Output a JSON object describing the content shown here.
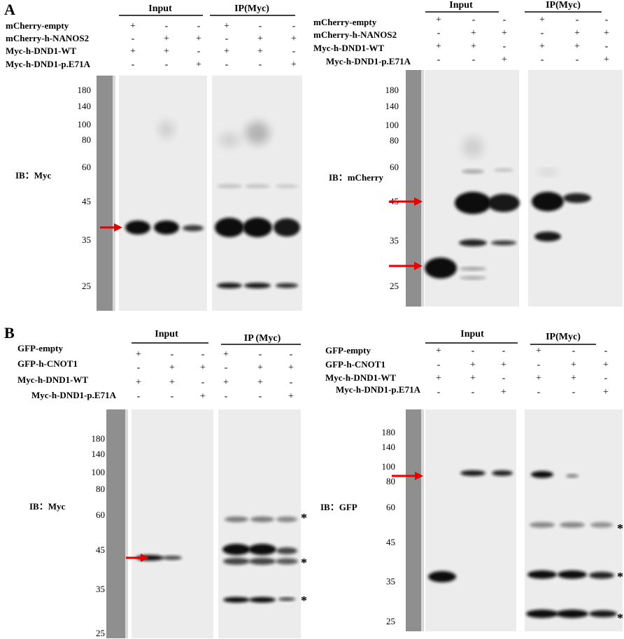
{
  "panel_labels": [
    "A",
    "B"
  ],
  "panels": [
    {
      "groups": [
        "Input",
        "IP(Myc)"
      ],
      "rows": [
        {
          "label": "mCherry-empty",
          "signs": [
            "+",
            "-",
            "-",
            "+",
            "-",
            "-"
          ]
        },
        {
          "label": "mCherry-h-NANOS2",
          "signs": [
            "-",
            "+",
            "+",
            "-",
            "+",
            "+"
          ]
        },
        {
          "label": "Myc-h-DND1-WT",
          "signs": [
            "+",
            "+",
            "-",
            "+",
            "+",
            "-"
          ]
        },
        {
          "label": "Myc-h-DND1-p.E71A",
          "signs": [
            "-",
            "-",
            "+",
            "-",
            "-",
            "+"
          ]
        }
      ],
      "markers": [
        180,
        140,
        100,
        80,
        60,
        45,
        35,
        25
      ],
      "ib": "IB：Myc",
      "asterisks": []
    },
    {
      "groups": [
        "Input",
        "IP(Myc)"
      ],
      "rows": [
        {
          "label": "mCherry-empty",
          "signs": [
            "+",
            "-",
            "-",
            "+",
            "-",
            "-"
          ]
        },
        {
          "label": "mCherry-h-NANOS2",
          "signs": [
            "-",
            "+",
            "+",
            "-",
            "+",
            "+"
          ]
        },
        {
          "label": "Myc-h-DND1-WT",
          "signs": [
            "+",
            "+",
            "-",
            "+",
            "+",
            "-"
          ]
        },
        {
          "label": "Myc-h-DND1-p.E71A",
          "signs": [
            "-",
            "-",
            "+",
            "-",
            "-",
            "+"
          ]
        }
      ],
      "markers": [
        180,
        140,
        100,
        80,
        60,
        45,
        35,
        25
      ],
      "ib": "IB：mCherry",
      "asterisks": []
    },
    {
      "groups": [
        "Input",
        "IP (Myc)"
      ],
      "rows": [
        {
          "label": "GFP-empty",
          "signs": [
            "+",
            "-",
            "-",
            "+",
            "-",
            "-"
          ]
        },
        {
          "label": "GFP-h-CNOT1",
          "signs": [
            "-",
            "+",
            "+",
            "-",
            "+",
            "+"
          ]
        },
        {
          "label": "Myc-h-DND1-WT",
          "signs": [
            "+",
            "+",
            "-",
            "+",
            "+",
            "-"
          ]
        },
        {
          "label": "Myc-h-DND1-p.E71A",
          "signs": [
            "-",
            "-",
            "+",
            "-",
            "-",
            "+"
          ]
        }
      ],
      "markers": [
        180,
        140,
        100,
        80,
        60,
        45,
        35,
        25
      ],
      "ib": "IB：Myc",
      "asterisks": [
        "*",
        "*",
        "*"
      ]
    },
    {
      "groups": [
        "Input",
        "IP(Myc)"
      ],
      "rows": [
        {
          "label": "GFP-empty",
          "signs": [
            "+",
            "-",
            "-",
            "+",
            "-",
            "-"
          ]
        },
        {
          "label": "GFP-h-CNOT1",
          "signs": [
            "-",
            "+",
            "+",
            "-",
            "+",
            "+"
          ]
        },
        {
          "label": "Myc-h-DND1-WT",
          "signs": [
            "+",
            "+",
            "-",
            "+",
            "+",
            "-"
          ]
        },
        {
          "label": "Myc-h-DND1-p.E71A",
          "signs": [
            "-",
            "-",
            "+",
            "-",
            "-",
            "+"
          ]
        }
      ],
      "markers": [
        180,
        140,
        100,
        80,
        60,
        45,
        35,
        25
      ],
      "ib": "IB：GFP",
      "asterisks": [
        "*",
        "*",
        "*"
      ]
    }
  ]
}
